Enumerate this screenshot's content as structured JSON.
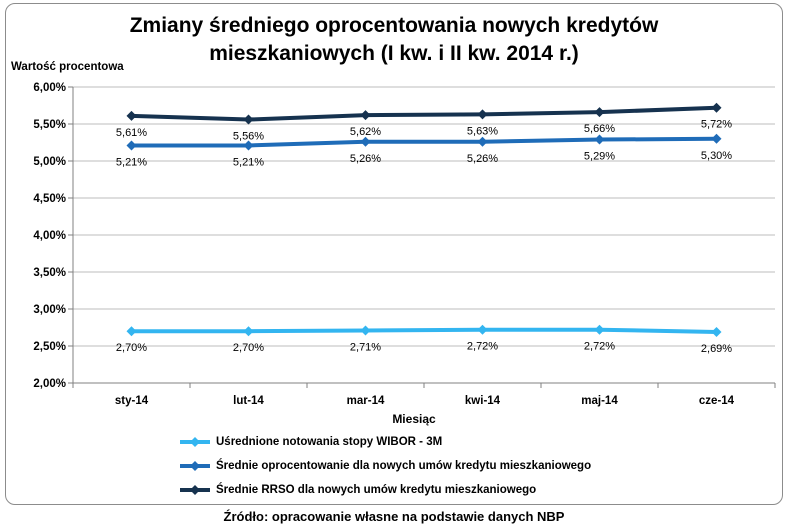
{
  "chart_data": {
    "type": "line",
    "title_line1": "Zmiany średniego oprocentowania nowych kredytów",
    "title_line2": "mieszkaniowych (I kw. i II kw. 2014 r.)",
    "ylabel": "Wartość procentowa",
    "xlabel": "Miesiąc",
    "categories": [
      "sty-14",
      "lut-14",
      "mar-14",
      "kwi-14",
      "maj-14",
      "cze-14"
    ],
    "yticks": [
      "2,00%",
      "2,50%",
      "3,00%",
      "3,50%",
      "4,00%",
      "4,50%",
      "5,00%",
      "5,50%",
      "6,00%"
    ],
    "ylim": [
      2.0,
      6.0
    ],
    "grid": true,
    "legend_position": "bottom",
    "series": [
      {
        "name": "Uśrednione notowania stopy WIBOR - 3M",
        "color": "#33b5f0",
        "values": [
          2.7,
          2.7,
          2.71,
          2.72,
          2.72,
          2.69
        ],
        "labels": [
          "2,70%",
          "2,70%",
          "2,71%",
          "2,72%",
          "2,72%",
          "2,69%"
        ],
        "label_side": "below"
      },
      {
        "name": "Średnie oprocentowanie dla nowych umów kredytu mieszkaniowego",
        "color": "#1f6cb8",
        "values": [
          5.21,
          5.21,
          5.26,
          5.26,
          5.29,
          5.3
        ],
        "labels": [
          "5,21%",
          "5,21%",
          "5,26%",
          "5,26%",
          "5,29%",
          "5,30%"
        ],
        "label_side": "below"
      },
      {
        "name": "Średnie RRSO dla nowych umów kredytu mieszkaniowego",
        "color": "#16324f",
        "values": [
          5.61,
          5.56,
          5.62,
          5.63,
          5.66,
          5.72
        ],
        "labels": [
          "5,61%",
          "5,56%",
          "5,62%",
          "5,63%",
          "5,66%",
          "5,72%"
        ],
        "label_side": "below"
      }
    ]
  },
  "source": "Źródło: opracowanie własne na podstawie danych NBP"
}
